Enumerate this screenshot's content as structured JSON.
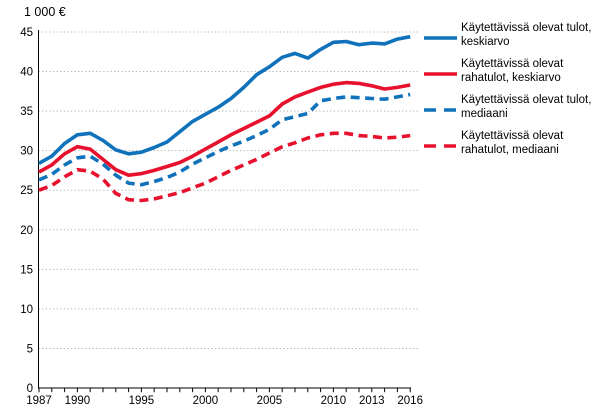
{
  "unit_label": "1 000 €",
  "colors": {
    "blue": "#1072ba",
    "red": "#e8112d",
    "grid": "#b5b5b5",
    "axis": "#000000",
    "text": "#000000",
    "background": "#ffffff"
  },
  "chart_data": {
    "type": "line",
    "title": "1 000 €",
    "x": [
      1987,
      1988,
      1989,
      1990,
      1991,
      1992,
      1993,
      1994,
      1995,
      1996,
      1997,
      1998,
      1999,
      2000,
      2001,
      2002,
      2003,
      2004,
      2005,
      2006,
      2007,
      2008,
      2009,
      2010,
      2011,
      2012,
      2013,
      2014,
      2015,
      2016
    ],
    "x_tick_labels": [
      "1987",
      "1990",
      "1995",
      "2000",
      "2005",
      "2010",
      "2013",
      "2016"
    ],
    "x_labeled_years": [
      1987,
      1990,
      1995,
      2000,
      2005,
      2010,
      2013,
      2016
    ],
    "y_ticks": [
      "0",
      "5",
      "10",
      "15",
      "20",
      "25",
      "30",
      "35",
      "40",
      "45"
    ],
    "y_tick_values": [
      0,
      5,
      10,
      15,
      20,
      25,
      30,
      35,
      40,
      45
    ],
    "ylim": [
      0,
      45
    ],
    "xlabel": "",
    "ylabel": "1 000 €",
    "grid": "horizontal-dotted",
    "legend_position": "right",
    "series": [
      {
        "name": "Käytettävissä olevat tulot, keskiarvo",
        "color": "#1072ba",
        "style": "solid",
        "values": [
          28.4,
          29.3,
          30.9,
          32.0,
          32.2,
          31.3,
          30.1,
          29.6,
          29.8,
          30.4,
          31.1,
          32.4,
          33.7,
          34.6,
          35.5,
          36.6,
          38.0,
          39.6,
          40.6,
          41.8,
          42.3,
          41.7,
          42.8,
          43.7,
          43.8,
          43.4,
          43.6,
          43.5,
          44.1,
          44.4
        ]
      },
      {
        "name": "Käytettävissä olevat rahatulot, keskiarvo",
        "color": "#e8112d",
        "style": "solid",
        "values": [
          27.3,
          28.2,
          29.6,
          30.5,
          30.2,
          28.9,
          27.6,
          26.9,
          27.1,
          27.5,
          28.0,
          28.5,
          29.3,
          30.2,
          31.1,
          32.0,
          32.8,
          33.6,
          34.4,
          35.9,
          36.8,
          37.4,
          38.0,
          38.4,
          38.6,
          38.5,
          38.2,
          37.8,
          38.0,
          38.3
        ]
      },
      {
        "name": "Käytettävissä olevat tulot, mediaani",
        "color": "#1072ba",
        "style": "dashed",
        "values": [
          26.3,
          27.0,
          28.2,
          29.1,
          29.3,
          28.3,
          26.9,
          25.9,
          25.7,
          26.1,
          26.6,
          27.3,
          28.3,
          29.1,
          29.9,
          30.6,
          31.2,
          31.9,
          32.7,
          33.9,
          34.3,
          34.7,
          36.3,
          36.6,
          36.8,
          36.7,
          36.6,
          36.5,
          36.8,
          37.1
        ]
      },
      {
        "name": "Käytettävissä olevat rahatulot, mediaani",
        "color": "#e8112d",
        "style": "dashed",
        "values": [
          25.0,
          25.6,
          26.7,
          27.6,
          27.4,
          26.4,
          24.6,
          23.8,
          23.7,
          23.9,
          24.3,
          24.7,
          25.3,
          25.9,
          26.7,
          27.5,
          28.2,
          28.9,
          29.7,
          30.5,
          31.0,
          31.6,
          32.0,
          32.2,
          32.2,
          31.9,
          31.8,
          31.6,
          31.7,
          31.9
        ]
      }
    ]
  },
  "legend": {
    "entries": [
      {
        "lines": [
          "Käytettävissä olevat tulot,",
          "keskiarvo"
        ],
        "color": "#1072ba",
        "style": "solid"
      },
      {
        "lines": [
          "Käytettävissä olevat",
          "rahatulot, keskiarvo"
        ],
        "color": "#e8112d",
        "style": "solid"
      },
      {
        "lines": [
          "Käytettävissä olevat tulot,",
          "mediaani"
        ],
        "color": "#1072ba",
        "style": "dashed"
      },
      {
        "lines": [
          "Käytettävissä olevat",
          "rahatulot, mediaani"
        ],
        "color": "#e8112d",
        "style": "dashed"
      }
    ]
  }
}
